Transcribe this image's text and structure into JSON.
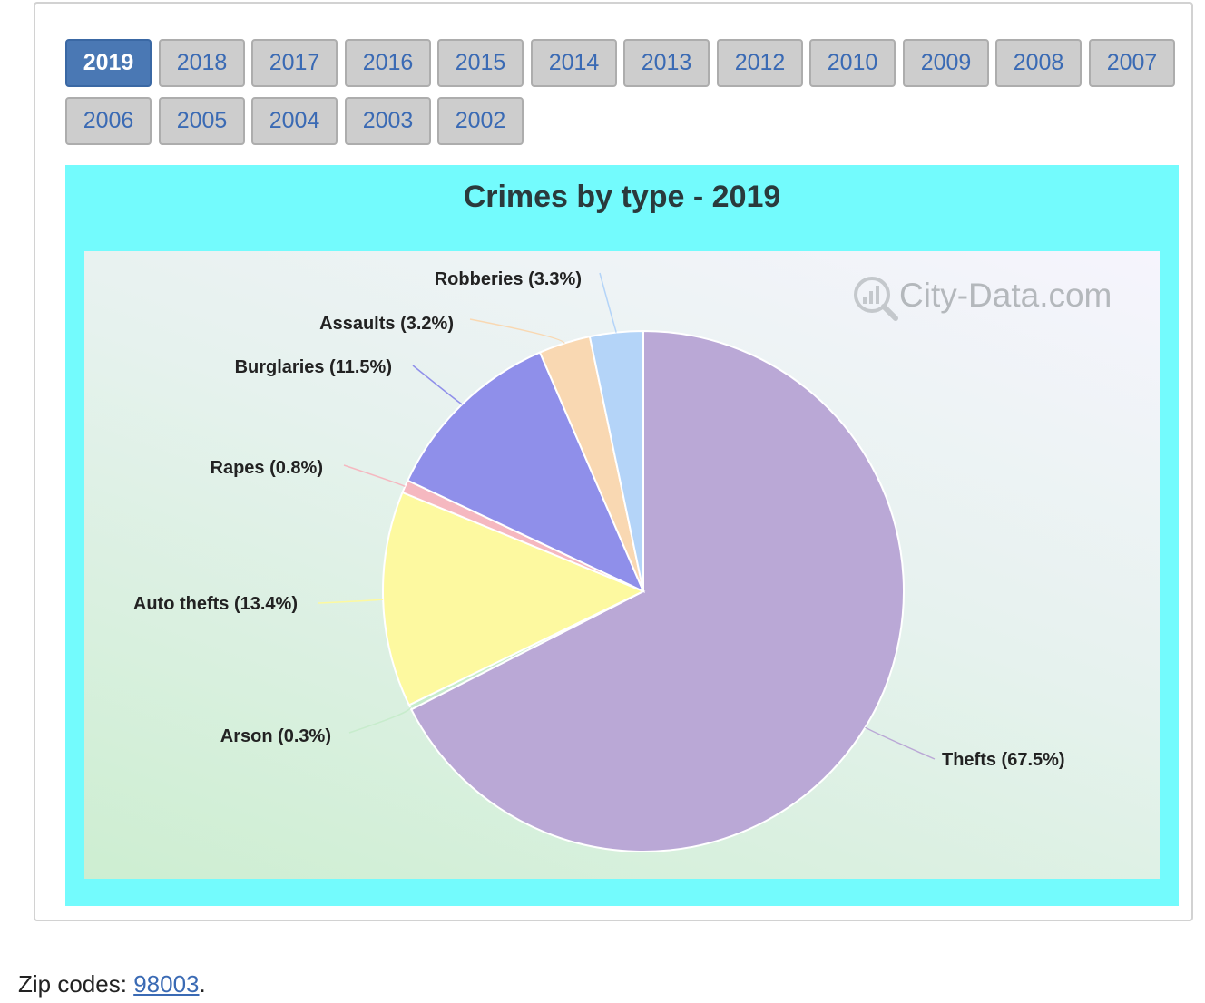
{
  "year_tabs": [
    "2019",
    "2018",
    "2017",
    "2016",
    "2015",
    "2014",
    "2013",
    "2012",
    "2010",
    "2009",
    "2008",
    "2007",
    "2006",
    "2005",
    "2004",
    "2003",
    "2002"
  ],
  "active_tab": "2019",
  "watermark": "City-Data.com",
  "footer": {
    "label": "Zip codes:",
    "link": "98003",
    "suffix": "."
  },
  "chart_data": {
    "type": "pie",
    "title": "Crimes by type - 2019",
    "slices": [
      {
        "name": "Thefts",
        "label": "Thefts (67.5%)",
        "value": 67.5,
        "color": "#baa8d6"
      },
      {
        "name": "Arson",
        "label": "Arson (0.3%)",
        "value": 0.3,
        "color": "#c7eccc"
      },
      {
        "name": "Auto thefts",
        "label": "Auto thefts (13.4%)",
        "value": 13.4,
        "color": "#fdf9a0"
      },
      {
        "name": "Rapes",
        "label": "Rapes (0.8%)",
        "value": 0.8,
        "color": "#f5b8c0"
      },
      {
        "name": "Burglaries",
        "label": "Burglaries (11.5%)",
        "value": 11.5,
        "color": "#8f8fea"
      },
      {
        "name": "Assaults",
        "label": "Assaults (3.2%)",
        "value": 3.2,
        "color": "#f9d8b2"
      },
      {
        "name": "Robberies",
        "label": "Robberies (3.3%)",
        "value": 3.3,
        "color": "#b4d4f8"
      }
    ],
    "colors": {
      "background": "#73fbfd",
      "tab_active": "#4a78b4",
      "tab": "#cdcdcd",
      "link": "#3a6ab4"
    }
  }
}
